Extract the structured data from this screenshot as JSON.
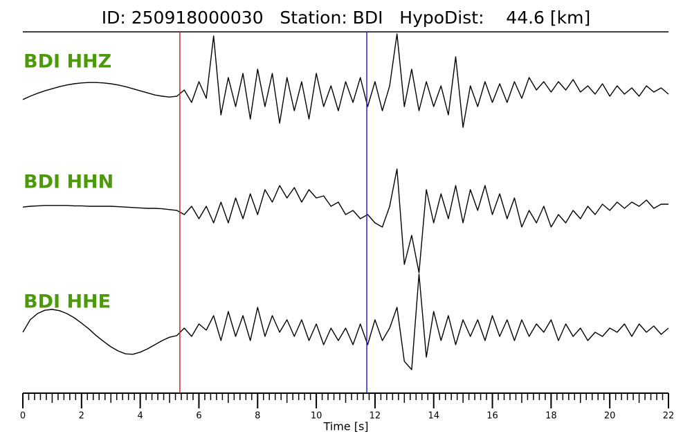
{
  "chart_data": {
    "type": "seismogram",
    "title": "ID: 250918000030   Station: BDI   HypoDist:    44.6 [km]",
    "x_label": "Time [s]",
    "xlim": [
      0,
      22
    ],
    "xticks": [
      0,
      2,
      4,
      6,
      8,
      10,
      12,
      14,
      16,
      18,
      20,
      22
    ],
    "minor_tick_step": 0.2,
    "label_color": "#4c9a0a",
    "trace_color": "#000000",
    "picks": [
      {
        "time": 5.35,
        "color": "#e02020"
      },
      {
        "time": 11.72,
        "color": "#2a2ac0"
      }
    ],
    "x": [
      0,
      0.25,
      0.5,
      0.75,
      1,
      1.25,
      1.5,
      1.75,
      2,
      2.25,
      2.5,
      2.75,
      3,
      3.25,
      3.5,
      3.75,
      4,
      4.25,
      4.5,
      4.75,
      5,
      5.25,
      5.5,
      5.75,
      6,
      6.25,
      6.5,
      6.75,
      7,
      7.25,
      7.5,
      7.75,
      8,
      8.25,
      8.5,
      8.75,
      9,
      9.25,
      9.5,
      9.75,
      10,
      10.25,
      10.5,
      10.75,
      11,
      11.25,
      11.5,
      11.75,
      12,
      12.25,
      12.5,
      12.75,
      13,
      13.25,
      13.5,
      13.75,
      14,
      14.25,
      14.5,
      14.75,
      15,
      15.25,
      15.5,
      15.75,
      16,
      16.25,
      16.5,
      16.75,
      17,
      17.25,
      17.5,
      17.75,
      18,
      18.25,
      18.5,
      18.75,
      19,
      19.25,
      19.5,
      19.75,
      20,
      20.25,
      20.5,
      20.75,
      21,
      21.25,
      21.5,
      21.75,
      22
    ],
    "series": [
      {
        "name": "BDI HHZ",
        "values": [
          -0.13,
          -0.05,
          0.02,
          0.08,
          0.13,
          0.18,
          0.22,
          0.25,
          0.27,
          0.28,
          0.28,
          0.27,
          0.25,
          0.22,
          0.18,
          0.13,
          0.08,
          0.03,
          -0.02,
          -0.05,
          -0.07,
          -0.05,
          0.1,
          -0.2,
          0.3,
          -0.1,
          1.4,
          -0.5,
          0.4,
          -0.3,
          0.5,
          -0.6,
          0.6,
          -0.3,
          0.5,
          -0.7,
          0.4,
          -0.4,
          0.3,
          -0.6,
          0.5,
          -0.3,
          0.2,
          -0.4,
          0.3,
          -0.2,
          0.4,
          -0.3,
          0.3,
          -0.4,
          0.2,
          1.45,
          -0.3,
          0.6,
          -0.4,
          0.3,
          -0.3,
          0.2,
          -0.5,
          0.9,
          -0.8,
          0.2,
          -0.3,
          0.3,
          -0.2,
          0.25,
          -0.2,
          0.3,
          -0.1,
          0.4,
          0.1,
          0.3,
          0.05,
          0.3,
          0.1,
          0.35,
          0.05,
          0.2,
          0,
          0.25,
          -0.05,
          0.2,
          0,
          0.15,
          -0.05,
          0.2,
          0.05,
          0.15,
          0
        ]
      },
      {
        "name": "BDI HHN",
        "values": [
          0.08,
          0.1,
          0.11,
          0.12,
          0.12,
          0.12,
          0.12,
          0.11,
          0.11,
          0.1,
          0.1,
          0.1,
          0.1,
          0.09,
          0.08,
          0.07,
          0.06,
          0.05,
          0.05,
          0.04,
          0.02,
          0,
          -0.1,
          0.1,
          -0.2,
          0.1,
          -0.3,
          0.2,
          -0.3,
          0.3,
          -0.2,
          0.4,
          -0.1,
          0.5,
          0.2,
          0.6,
          0.3,
          0.55,
          0.2,
          0.5,
          0.3,
          0.35,
          0.1,
          0.2,
          -0.1,
          0,
          -0.2,
          -0.1,
          -0.3,
          -0.4,
          0.1,
          1.0,
          -1.3,
          -0.6,
          -1.5,
          0.5,
          -0.3,
          0.4,
          -0.2,
          0.6,
          -0.3,
          0.5,
          0,
          0.6,
          -0.1,
          0.4,
          -0.2,
          0.3,
          -0.4,
          0,
          -0.3,
          0.1,
          -0.4,
          -0.1,
          -0.3,
          0,
          -0.2,
          0.1,
          -0.1,
          0.15,
          0,
          0.2,
          0.05,
          0.2,
          0.1,
          0.25,
          0.05,
          0.15,
          0.15
        ]
      },
      {
        "name": "BDI HHE",
        "values": [
          0,
          0.3,
          0.45,
          0.53,
          0.55,
          0.52,
          0.45,
          0.35,
          0.22,
          0.08,
          -0.08,
          -0.22,
          -0.35,
          -0.45,
          -0.52,
          -0.53,
          -0.48,
          -0.4,
          -0.3,
          -0.2,
          -0.12,
          -0.08,
          0.1,
          -0.1,
          0.2,
          0.05,
          0.4,
          -0.2,
          0.5,
          -0.1,
          0.4,
          -0.2,
          0.6,
          -0.1,
          0.4,
          0,
          0.3,
          -0.1,
          0.3,
          -0.2,
          0.2,
          -0.3,
          0.1,
          -0.2,
          0.1,
          -0.3,
          0.2,
          -0.3,
          0.3,
          -0.2,
          0.1,
          0.6,
          -0.7,
          -0.9,
          1.4,
          -0.6,
          0.5,
          -0.2,
          0.4,
          -0.3,
          0.3,
          -0.1,
          0.3,
          -0.2,
          0.4,
          -0.1,
          0.3,
          -0.2,
          0.3,
          -0.1,
          0.2,
          0,
          0.3,
          -0.2,
          0.2,
          -0.1,
          0.1,
          -0.2,
          0,
          -0.1,
          0.1,
          0,
          0.2,
          -0.1,
          0.2,
          0,
          0.15,
          -0.05,
          0.1
        ]
      }
    ]
  }
}
